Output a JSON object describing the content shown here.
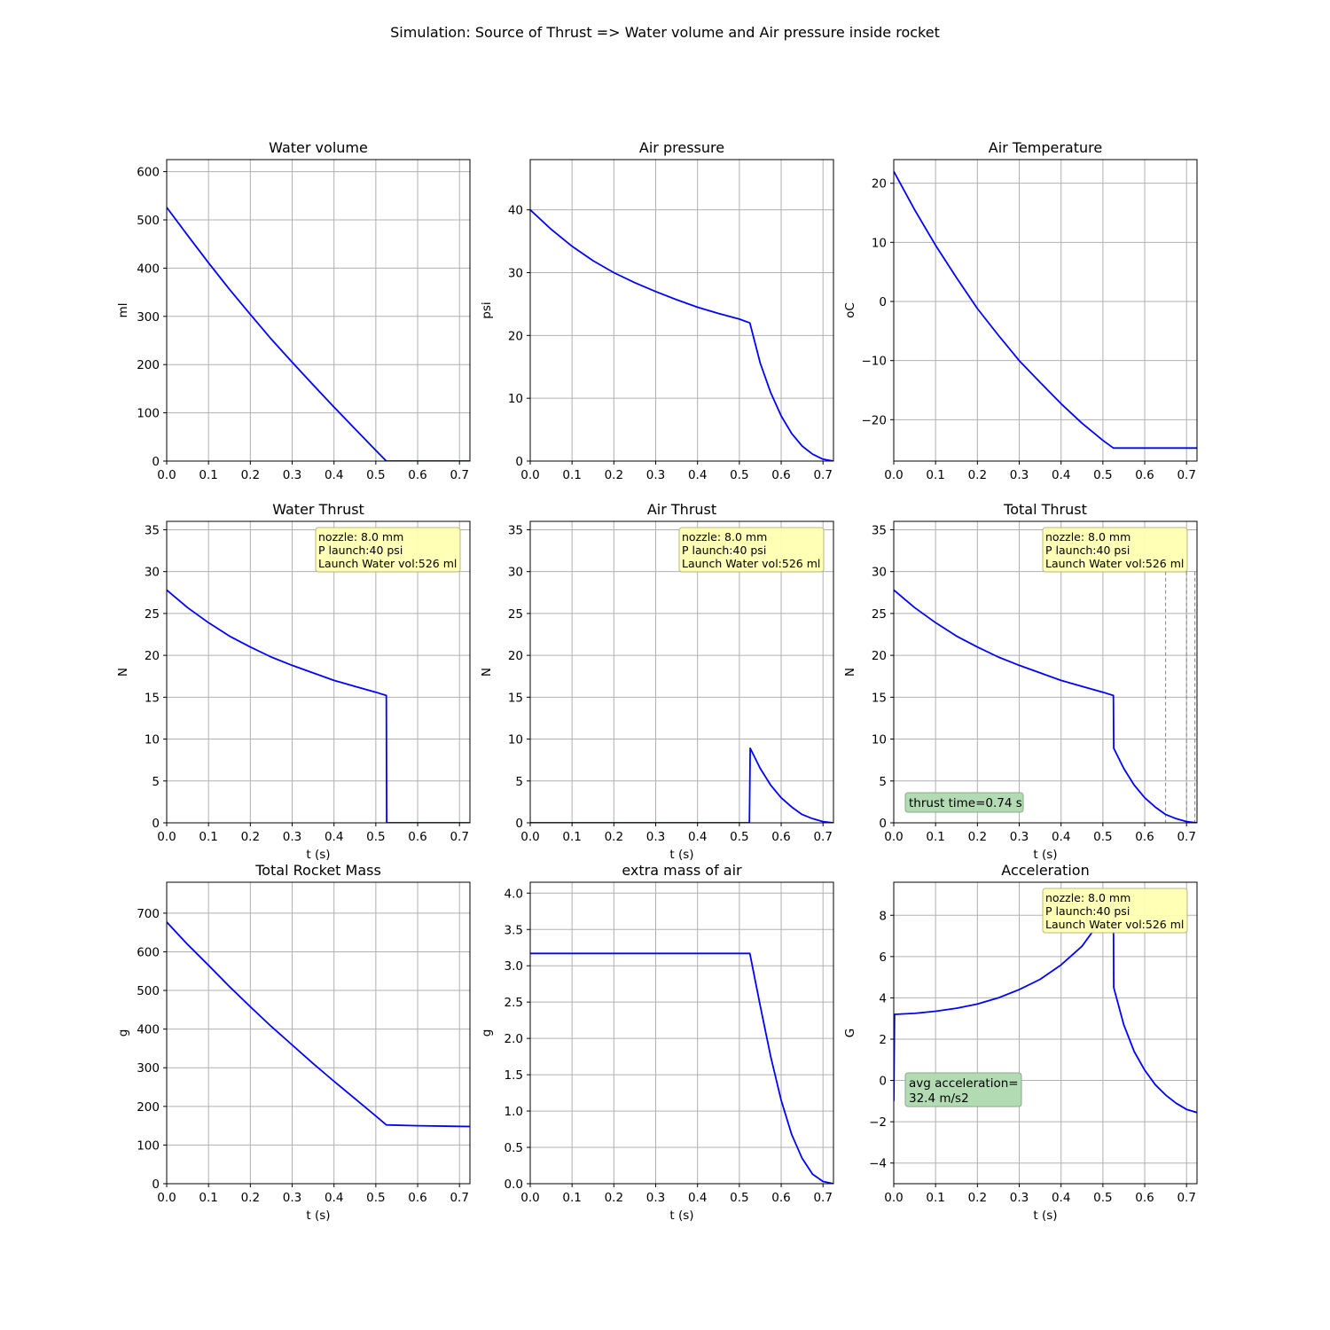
{
  "figure_title": "Simulation: Source of Thrust => Water volume and Air pressure inside rocket",
  "colors": {
    "curve": "#0000ff",
    "grid": "#b0b0b0",
    "info_box_fill": "#ffffb3",
    "info_box_border": "#b5b57a",
    "note_box_fill": "#b3dbb3",
    "note_box_border": "#8aa98a",
    "marker_lines": "#808080"
  },
  "chart_data": [
    {
      "type": "line",
      "title": "Water volume",
      "xlabel": "",
      "ylabel": "ml",
      "xlim": [
        0,
        0.725
      ],
      "ylim": [
        0,
        625
      ],
      "xticks": [
        "0.0",
        "0.1",
        "0.2",
        "0.3",
        "0.4",
        "0.5",
        "0.6",
        "0.7"
      ],
      "yticks": [
        "0",
        "100",
        "200",
        "300",
        "400",
        "500",
        "600"
      ],
      "grid": true,
      "x": [
        0,
        0.05,
        0.1,
        0.15,
        0.2,
        0.25,
        0.3,
        0.35,
        0.4,
        0.45,
        0.5,
        0.525,
        0.6,
        0.725
      ],
      "y": [
        526,
        468,
        411,
        356,
        304,
        253,
        205,
        158,
        112,
        67,
        22,
        0,
        0,
        0
      ]
    },
    {
      "type": "line",
      "title": "Air pressure",
      "xlabel": "",
      "ylabel": "psi",
      "xlim": [
        0,
        0.725
      ],
      "ylim": [
        0,
        48
      ],
      "xticks": [
        "0.0",
        "0.1",
        "0.2",
        "0.3",
        "0.4",
        "0.5",
        "0.6",
        "0.7"
      ],
      "yticks": [
        "0",
        "10",
        "20",
        "30",
        "40"
      ],
      "grid": true,
      "x": [
        0,
        0.05,
        0.1,
        0.15,
        0.2,
        0.25,
        0.3,
        0.35,
        0.4,
        0.45,
        0.5,
        0.525,
        0.55,
        0.575,
        0.6,
        0.625,
        0.65,
        0.675,
        0.7,
        0.725
      ],
      "y": [
        40,
        36.9,
        34.2,
        31.9,
        30.0,
        28.4,
        27.0,
        25.7,
        24.5,
        23.5,
        22.6,
        22.0,
        15.6,
        10.9,
        7.2,
        4.4,
        2.4,
        1.1,
        0.3,
        0.0
      ]
    },
    {
      "type": "line",
      "title": "Air Temperature",
      "xlabel": "",
      "ylabel": "oC",
      "xlim": [
        0,
        0.725
      ],
      "ylim": [
        -27,
        24
      ],
      "xticks": [
        "0.0",
        "0.1",
        "0.2",
        "0.3",
        "0.4",
        "0.5",
        "0.6",
        "0.7"
      ],
      "yticks": [
        "−20",
        "−10",
        "0",
        "10",
        "20"
      ],
      "ytick_values": [
        -20,
        -10,
        0,
        10,
        20
      ],
      "grid": true,
      "x": [
        0,
        0.05,
        0.1,
        0.15,
        0.2,
        0.25,
        0.3,
        0.35,
        0.4,
        0.45,
        0.5,
        0.525,
        0.6,
        0.725
      ],
      "y": [
        22,
        15.5,
        9.5,
        4.0,
        -1.2,
        -5.7,
        -10.0,
        -13.7,
        -17.3,
        -20.6,
        -23.5,
        -24.8,
        -24.8,
        -24.8
      ]
    },
    {
      "type": "line",
      "title": "Water Thrust",
      "xlabel": "t (s)",
      "ylabel": "N",
      "xlim": [
        0,
        0.725
      ],
      "ylim": [
        0,
        36
      ],
      "xticks": [
        "0.0",
        "0.1",
        "0.2",
        "0.3",
        "0.4",
        "0.5",
        "0.6",
        "0.7"
      ],
      "yticks": [
        "0",
        "5",
        "10",
        "15",
        "20",
        "25",
        "30",
        "35"
      ],
      "grid": true,
      "info_box": [
        "nozzle:   8.0 mm",
        "P launch:40 psi",
        "Launch Water vol:526 ml"
      ],
      "x": [
        0,
        0.05,
        0.1,
        0.15,
        0.2,
        0.25,
        0.3,
        0.35,
        0.4,
        0.45,
        0.5,
        0.525,
        0.526,
        0.6,
        0.725
      ],
      "y": [
        27.8,
        25.7,
        23.9,
        22.3,
        21.0,
        19.8,
        18.8,
        17.9,
        17.0,
        16.3,
        15.6,
        15.2,
        0,
        0,
        0
      ]
    },
    {
      "type": "line",
      "title": "Air Thrust",
      "xlabel": "t (s)",
      "ylabel": "N",
      "xlim": [
        0,
        0.725
      ],
      "ylim": [
        0,
        36
      ],
      "xticks": [
        "0.0",
        "0.1",
        "0.2",
        "0.3",
        "0.4",
        "0.5",
        "0.6",
        "0.7"
      ],
      "yticks": [
        "0",
        "5",
        "10",
        "15",
        "20",
        "25",
        "30",
        "35"
      ],
      "grid": true,
      "info_box": [
        "nozzle:   8.0 mm",
        "P launch:40 psi",
        "Launch Water vol:526 ml"
      ],
      "x": [
        0,
        0.1,
        0.2,
        0.3,
        0.4,
        0.5,
        0.524,
        0.526,
        0.55,
        0.575,
        0.6,
        0.625,
        0.65,
        0.675,
        0.7,
        0.725
      ],
      "y": [
        0,
        0,
        0,
        0,
        0,
        0,
        0,
        8.9,
        6.5,
        4.5,
        3.0,
        1.9,
        1.0,
        0.5,
        0.15,
        0.0
      ]
    },
    {
      "type": "line",
      "title": "Total Thrust",
      "xlabel": "t (s)",
      "ylabel": "N",
      "xlim": [
        0,
        0.725
      ],
      "ylim": [
        0,
        36
      ],
      "xticks": [
        "0.0",
        "0.1",
        "0.2",
        "0.3",
        "0.4",
        "0.5",
        "0.6",
        "0.7"
      ],
      "yticks": [
        "0",
        "5",
        "10",
        "15",
        "20",
        "25",
        "30",
        "35"
      ],
      "grid": true,
      "info_box": [
        "nozzle:   8.0 mm",
        "P launch:40 psi",
        "Launch Water vol:526 ml"
      ],
      "note": [
        "thrust time=0.74 s"
      ],
      "vlines": [
        0.65,
        0.7,
        0.72
      ],
      "vline_top": 30,
      "x": [
        0,
        0.05,
        0.1,
        0.15,
        0.2,
        0.25,
        0.3,
        0.35,
        0.4,
        0.45,
        0.5,
        0.525,
        0.526,
        0.55,
        0.575,
        0.6,
        0.625,
        0.65,
        0.675,
        0.7,
        0.725
      ],
      "y": [
        27.8,
        25.7,
        23.9,
        22.3,
        21.0,
        19.8,
        18.8,
        17.9,
        17.0,
        16.3,
        15.6,
        15.2,
        8.9,
        6.5,
        4.5,
        3.0,
        1.9,
        1.0,
        0.5,
        0.15,
        0.0
      ]
    },
    {
      "type": "line",
      "title": "Total Rocket Mass",
      "xlabel": "t (s)",
      "ylabel": "g",
      "xlim": [
        0,
        0.725
      ],
      "ylim": [
        0,
        780
      ],
      "xticks": [
        "0.0",
        "0.1",
        "0.2",
        "0.3",
        "0.4",
        "0.5",
        "0.6",
        "0.7"
      ],
      "yticks": [
        "0",
        "100",
        "200",
        "300",
        "400",
        "500",
        "600",
        "700"
      ],
      "grid": true,
      "x": [
        0,
        0.05,
        0.1,
        0.15,
        0.2,
        0.25,
        0.3,
        0.35,
        0.4,
        0.45,
        0.5,
        0.525,
        0.6,
        0.725
      ],
      "y": [
        677,
        619,
        565,
        510,
        458,
        407,
        359,
        311,
        265,
        220,
        175,
        152,
        150,
        148
      ]
    },
    {
      "type": "line",
      "title": "extra mass of air",
      "xlabel": "t (s)",
      "ylabel": "g",
      "xlim": [
        0,
        0.725
      ],
      "ylim": [
        0,
        4.15
      ],
      "xticks": [
        "0.0",
        "0.1",
        "0.2",
        "0.3",
        "0.4",
        "0.5",
        "0.6",
        "0.7"
      ],
      "yticks": [
        "0.0",
        "0.5",
        "1.0",
        "1.5",
        "2.0",
        "2.5",
        "3.0",
        "3.5",
        "4.0"
      ],
      "grid": true,
      "x": [
        0,
        0.1,
        0.2,
        0.3,
        0.4,
        0.5,
        0.525,
        0.55,
        0.575,
        0.6,
        0.625,
        0.65,
        0.675,
        0.7,
        0.725
      ],
      "y": [
        3.17,
        3.17,
        3.17,
        3.17,
        3.17,
        3.17,
        3.17,
        2.45,
        1.75,
        1.15,
        0.68,
        0.35,
        0.13,
        0.03,
        0.0
      ]
    },
    {
      "type": "line",
      "title": "Acceleration",
      "xlabel": "t (s)",
      "ylabel": "G",
      "xlim": [
        0,
        0.725
      ],
      "ylim": [
        -5,
        9.6
      ],
      "xticks": [
        "0.0",
        "0.1",
        "0.2",
        "0.3",
        "0.4",
        "0.5",
        "0.6",
        "0.7"
      ],
      "yticks": [
        "−4",
        "−2",
        "0",
        "2",
        "4",
        "6",
        "8"
      ],
      "ytick_values": [
        -4,
        -2,
        0,
        2,
        4,
        6,
        8
      ],
      "grid": true,
      "info_box": [
        "nozzle:   8.0 mm",
        "P launch:40 psi",
        "Launch Water vol:526 ml"
      ],
      "note": [
        "avg acceleration=",
        "32.4 m/s2"
      ],
      "x": [
        0,
        0.002,
        0.05,
        0.1,
        0.15,
        0.2,
        0.25,
        0.3,
        0.35,
        0.4,
        0.45,
        0.5,
        0.525,
        0.526,
        0.55,
        0.575,
        0.6,
        0.625,
        0.65,
        0.675,
        0.7,
        0.725
      ],
      "y": [
        -1.0,
        3.2,
        3.25,
        3.35,
        3.5,
        3.7,
        4.0,
        4.4,
        4.9,
        5.6,
        6.5,
        7.9,
        8.65,
        4.5,
        2.7,
        1.4,
        0.5,
        -0.2,
        -0.7,
        -1.1,
        -1.4,
        -1.55
      ]
    }
  ]
}
